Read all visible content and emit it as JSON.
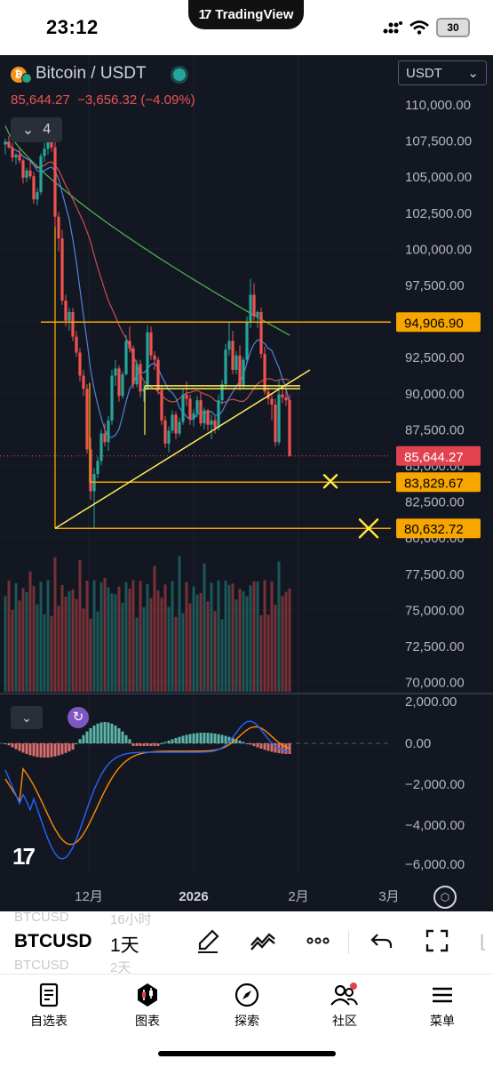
{
  "status_bar": {
    "time": "23:12",
    "app_pill": "TradingView",
    "app_pill_logo": "17",
    "battery": "30"
  },
  "chart": {
    "symbol_title": "Bitcoin / USDT",
    "last_price": "85,644.27",
    "change": "−3,656.32 (−4.09%)",
    "indicator_count": "4",
    "currency": "USDT",
    "price_axis": [
      "110,000.00",
      "107,500.00",
      "105,000.00",
      "102,500.00",
      "100,000.00",
      "97,500.00",
      "95,000.00",
      "92,500.00",
      "90,000.00",
      "87,500.00",
      "85,000.00",
      "82,500.00",
      "80,000.00",
      "77,500.00",
      "75,000.00",
      "72,500.00",
      "70,000.00"
    ],
    "price_tags": [
      {
        "value": "94,906.90",
        "color": "#f7a600",
        "text_color": "#000000"
      },
      {
        "value": "85,644.27",
        "color": "#e0434e",
        "text_color": "#ffffff"
      },
      {
        "value": "83,829.67",
        "color": "#f7a600",
        "text_color": "#000000"
      },
      {
        "value": "80,632.72",
        "color": "#f7a600",
        "text_color": "#000000"
      }
    ],
    "macd_axis": [
      "2,000.00",
      "0.00",
      "−2,000.00",
      "−4,000.00",
      "−6,000.00"
    ],
    "time_axis": [
      "12月",
      "2026",
      "2月",
      "3月"
    ],
    "watermark": "17",
    "colors": {
      "up": "#26a69a",
      "down": "#ef5350",
      "level": "#f7a600",
      "trend": "#ffeb3b",
      "ma_green": "#4caf50",
      "ma_red": "#e85a5a",
      "ma_blue": "#2962ff",
      "macd_orange": "#ff8a00"
    }
  },
  "chart_data": {
    "type": "candlestick",
    "title": "Bitcoin / USDT",
    "ylim": [
      69000,
      112500
    ],
    "last": 85644.27,
    "levels": [
      94906.9,
      83829.67,
      80632.72
    ],
    "series": [
      {
        "name": "BTCUSDT 1D",
        "values": [
          [
            107200,
            107600,
            106500,
            107400
          ],
          [
            107400,
            107800,
            106900,
            107000
          ],
          [
            107000,
            107300,
            106000,
            106300
          ],
          [
            106300,
            106600,
            105800,
            106500
          ],
          [
            106500,
            106900,
            105900,
            106100
          ],
          [
            106100,
            106200,
            104500,
            104900
          ],
          [
            104900,
            105600,
            104600,
            105400
          ],
          [
            105400,
            106000,
            104800,
            105000
          ],
          [
            105000,
            105300,
            103100,
            103400
          ],
          [
            103400,
            104200,
            103000,
            103900
          ],
          [
            103900,
            106600,
            103700,
            106400
          ],
          [
            106400,
            107300,
            106000,
            106900
          ],
          [
            106900,
            108300,
            106500,
            107900
          ],
          [
            107900,
            108000,
            106700,
            107000
          ],
          [
            107000,
            107500,
            101500,
            102200
          ],
          [
            102200,
            102500,
            99800,
            100700
          ],
          [
            100700,
            101300,
            96100,
            96400
          ],
          [
            96400,
            96800,
            94600,
            95000
          ],
          [
            95000,
            95900,
            94300,
            95600
          ],
          [
            95600,
            95900,
            93600,
            93900
          ],
          [
            93900,
            94300,
            92500,
            92800
          ],
          [
            92800,
            93100,
            90800,
            91200
          ],
          [
            91200,
            91600,
            89800,
            90300
          ],
          [
            90300,
            90600,
            85800,
            86100
          ],
          [
            86100,
            86900,
            82600,
            83200
          ],
          [
            83200,
            84800,
            80600,
            84400
          ],
          [
            84400,
            85600,
            84100,
            85300
          ],
          [
            85300,
            87500,
            85000,
            87200
          ],
          [
            87200,
            87900,
            86300,
            86600
          ],
          [
            86600,
            88400,
            86000,
            88100
          ],
          [
            88100,
            91600,
            87800,
            91200
          ],
          [
            91200,
            92300,
            90500,
            91700
          ],
          [
            91700,
            91900,
            89400,
            89800
          ],
          [
            89800,
            91500,
            89600,
            91300
          ],
          [
            91300,
            94000,
            91200,
            93600
          ],
          [
            93600,
            94600,
            92800,
            93100
          ],
          [
            93100,
            93300,
            90300,
            90600
          ],
          [
            90600,
            92300,
            90400,
            92000
          ],
          [
            92000,
            92300,
            89700,
            90100
          ],
          [
            90100,
            90700,
            89400,
            90300
          ],
          [
            90300,
            94700,
            90200,
            94200
          ],
          [
            94200,
            94600,
            92300,
            92600
          ],
          [
            92600,
            92900,
            91600,
            92300
          ],
          [
            92300,
            92500,
            89900,
            90200
          ],
          [
            90200,
            90500,
            87800,
            88100
          ],
          [
            88100,
            88400,
            86200,
            86500
          ],
          [
            86500,
            87700,
            85900,
            87400
          ],
          [
            87400,
            88800,
            87200,
            88500
          ],
          [
            88500,
            88700,
            86800,
            87200
          ],
          [
            87200,
            88300,
            87000,
            88000
          ],
          [
            88000,
            90300,
            87800,
            89900
          ],
          [
            89900,
            90800,
            89100,
            89600
          ],
          [
            89600,
            89900,
            87800,
            88200
          ],
          [
            88200,
            88900,
            87700,
            88600
          ],
          [
            88600,
            89800,
            88300,
            89500
          ],
          [
            89500,
            90000,
            87700,
            87900
          ],
          [
            87900,
            89000,
            87500,
            88800
          ],
          [
            88800,
            88900,
            87400,
            87800
          ],
          [
            87800,
            88500,
            86800,
            88100
          ],
          [
            88100,
            88400,
            87200,
            87600
          ],
          [
            87600,
            89900,
            87400,
            89500
          ],
          [
            89500,
            90900,
            89200,
            90600
          ],
          [
            90600,
            93400,
            90300,
            93000
          ],
          [
            93000,
            94900,
            92600,
            93600
          ],
          [
            93600,
            94300,
            91300,
            91600
          ],
          [
            91600,
            92900,
            91300,
            92600
          ],
          [
            92600,
            93300,
            90200,
            90500
          ],
          [
            90500,
            92500,
            90300,
            92300
          ],
          [
            92300,
            95300,
            92100,
            94900
          ],
          [
            94900,
            97900,
            94500,
            96800
          ],
          [
            96800,
            97600,
            95000,
            95300
          ],
          [
            95300,
            95700,
            94500,
            95600
          ],
          [
            95600,
            95900,
            92400,
            92700
          ],
          [
            92700,
            93200,
            89900,
            90100
          ],
          [
            90100,
            90400,
            89200,
            89600
          ],
          [
            89600,
            90000,
            88100,
            89200
          ],
          [
            89200,
            89600,
            86300,
            86600
          ],
          [
            86600,
            90900,
            86400,
            89900
          ],
          [
            89900,
            90500,
            89300,
            89700
          ],
          [
            89700,
            90200,
            89100,
            89500
          ],
          [
            89500,
            89900,
            85600,
            85644
          ]
        ]
      }
    ]
  },
  "toolbar": {
    "symbol": "BTCUSD",
    "interval": "1天",
    "ghost_symbol_top": "BTCUSD",
    "ghost_interval_top": "16小时",
    "ghost_symbol_bottom": "BTCUSD",
    "ghost_interval_bottom": "2天",
    "tools": [
      "brush-icon",
      "indicator-wave-icon",
      "more-icon",
      "undo-icon",
      "fullscreen-icon"
    ]
  },
  "tabs": [
    {
      "label": "自选表",
      "icon": "watchlist-icon"
    },
    {
      "label": "图表",
      "icon": "chart-icon"
    },
    {
      "label": "探索",
      "icon": "compass-icon"
    },
    {
      "label": "社区",
      "icon": "community-icon"
    },
    {
      "label": "菜单",
      "icon": "menu-icon"
    }
  ]
}
